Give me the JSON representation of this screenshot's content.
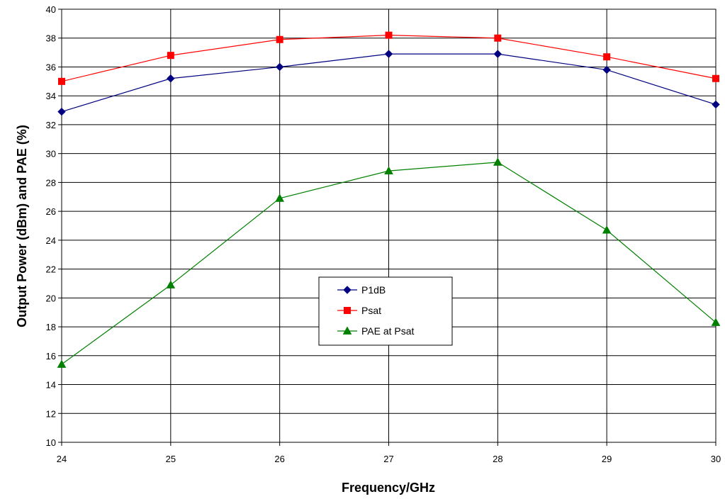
{
  "chart_data": {
    "type": "line",
    "title": "",
    "xlabel": "Frequency/GHz",
    "ylabel": "Output Power (dBm) and PAE (%)",
    "x": [
      24,
      25,
      26,
      27,
      28,
      29,
      30
    ],
    "xlim": [
      24,
      30
    ],
    "ylim": [
      10,
      40
    ],
    "x_ticks": [
      "24",
      "25",
      "26",
      "27",
      "28",
      "29",
      "30"
    ],
    "y_ticks": [
      "10",
      "12",
      "14",
      "16",
      "18",
      "20",
      "22",
      "24",
      "26",
      "28",
      "30",
      "32",
      "34",
      "36",
      "38",
      "40"
    ],
    "grid": true,
    "legend_position": "center",
    "series": [
      {
        "name": "P1dB",
        "color": "#000080",
        "marker": "diamond",
        "values": [
          32.9,
          35.2,
          36.0,
          36.9,
          36.9,
          35.8,
          33.4
        ]
      },
      {
        "name": "Psat",
        "color": "#ff0000",
        "marker": "square",
        "values": [
          35.0,
          36.8,
          37.9,
          38.2,
          38.0,
          36.7,
          35.2
        ]
      },
      {
        "name": "PAE at Psat",
        "color": "#008000",
        "marker": "triangle",
        "values": [
          15.4,
          20.9,
          26.9,
          28.8,
          29.4,
          24.7,
          18.3
        ]
      }
    ]
  }
}
